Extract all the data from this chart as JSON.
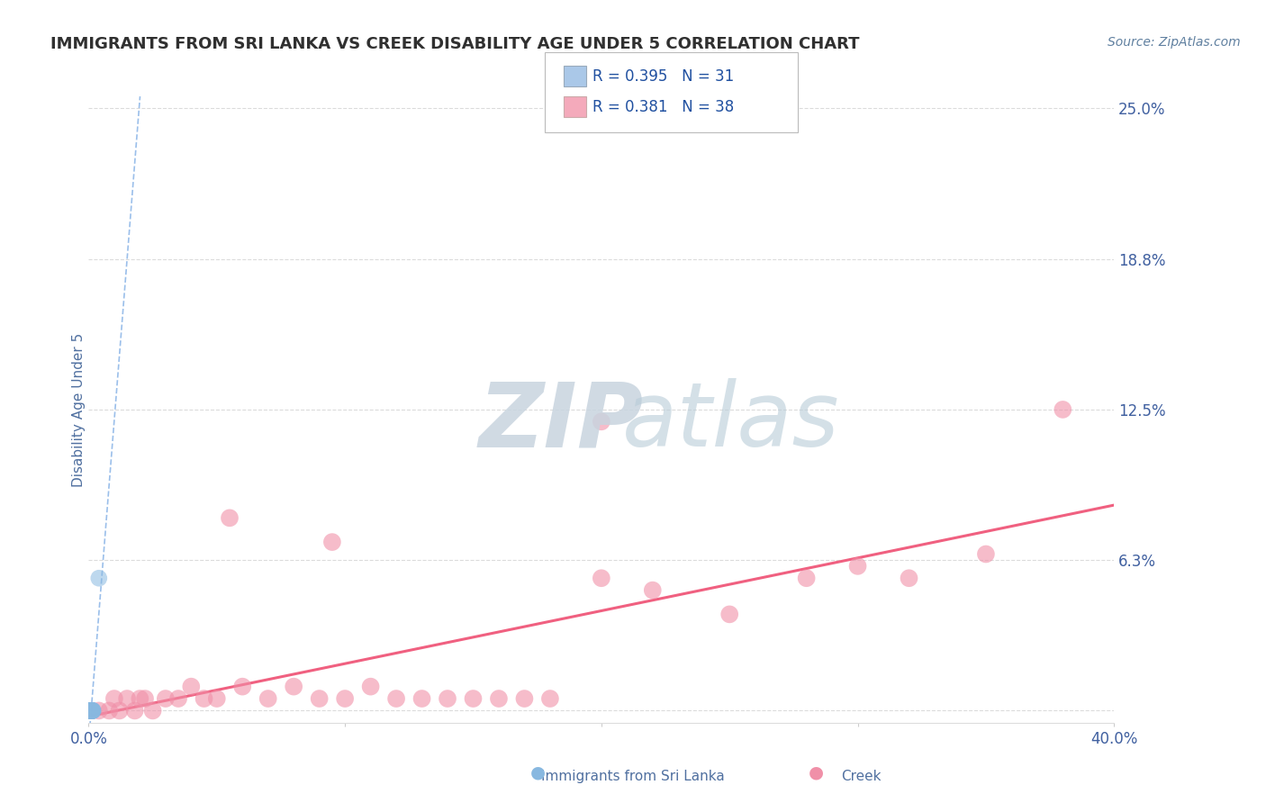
{
  "title": "IMMIGRANTS FROM SRI LANKA VS CREEK DISABILITY AGE UNDER 5 CORRELATION CHART",
  "source": "Source: ZipAtlas.com",
  "ylabel": "Disability Age Under 5",
  "xlim": [
    0,
    0.4
  ],
  "ylim": [
    -0.005,
    0.255
  ],
  "ytick_vals": [
    0.0,
    0.0625,
    0.125,
    0.1875,
    0.25
  ],
  "ytick_labels": [
    "",
    "6.3%",
    "12.5%",
    "18.8%",
    "25.0%"
  ],
  "legend_r1": "R = 0.395",
  "legend_n1": "N = 31",
  "legend_r2": "R = 0.381",
  "legend_n2": "N = 38",
  "legend_color1": "#aac8e8",
  "legend_color2": "#f4aabb",
  "color_sri_lanka": "#88b8e0",
  "color_creek": "#f090a8",
  "trend_color_sri_lanka": "#90b8e0",
  "trend_color_creek": "#f06080",
  "watermark_zip_color": "#c8d4e0",
  "watermark_atlas_color": "#b8ccd0",
  "background_color": "#ffffff",
  "grid_color": "#cccccc",
  "title_color": "#303030",
  "tick_label_color": "#4060a0",
  "sri_lanka_x": [
    0.0005,
    0.001,
    0.0015,
    0.0008,
    0.0012,
    0.0018,
    0.001,
    0.0005,
    0.0008,
    0.0015,
    0.001,
    0.0008,
    0.0012,
    0.0006,
    0.001,
    0.0015,
    0.0008,
    0.001,
    0.0012,
    0.0005,
    0.0008,
    0.001,
    0.0015,
    0.0008,
    0.001,
    0.0012,
    0.0008,
    0.001,
    0.0015,
    0.0008,
    0.004
  ],
  "sri_lanka_y": [
    0.0,
    0.0,
    0.0,
    0.0,
    0.0,
    0.0,
    0.0,
    0.0,
    0.0,
    0.0,
    0.0,
    0.0,
    0.0,
    0.0,
    0.0,
    0.0,
    0.0,
    0.0,
    0.0,
    0.0,
    0.0,
    0.0,
    0.0,
    0.0,
    0.0,
    0.0,
    0.0,
    0.0,
    0.0,
    0.0,
    0.055
  ],
  "creek_x": [
    0.004,
    0.008,
    0.012,
    0.015,
    0.018,
    0.022,
    0.025,
    0.03,
    0.035,
    0.04,
    0.045,
    0.05,
    0.06,
    0.07,
    0.08,
    0.09,
    0.1,
    0.11,
    0.12,
    0.13,
    0.14,
    0.15,
    0.16,
    0.17,
    0.18,
    0.2,
    0.22,
    0.25,
    0.28,
    0.3,
    0.32,
    0.35,
    0.38,
    0.01,
    0.02,
    0.055,
    0.095,
    0.2
  ],
  "creek_y": [
    0.0,
    0.0,
    0.0,
    0.005,
    0.0,
    0.005,
    0.0,
    0.005,
    0.005,
    0.01,
    0.005,
    0.005,
    0.01,
    0.005,
    0.01,
    0.005,
    0.005,
    0.01,
    0.005,
    0.005,
    0.005,
    0.005,
    0.005,
    0.005,
    0.005,
    0.055,
    0.05,
    0.04,
    0.055,
    0.06,
    0.055,
    0.065,
    0.125,
    0.005,
    0.005,
    0.08,
    0.07,
    0.12
  ]
}
